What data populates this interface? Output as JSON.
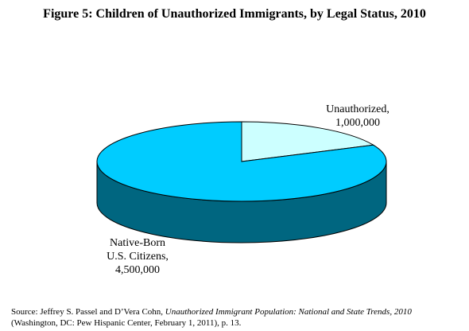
{
  "chart_data": {
    "type": "pie",
    "title": "Figure 5: Children of Unauthorized Immigrants, by Legal Status, 2010",
    "slices": [
      {
        "label_lines": [
          "Unauthorized,",
          "1,000,000"
        ],
        "value": 1000000,
        "color": "#ccffff",
        "side_color": "#00cccc"
      },
      {
        "label_lines": [
          "Native-Born",
          "U.S. Citizens,",
          "4,500,000"
        ],
        "value": 4500000,
        "color": "#00ccff",
        "side_color": "#006680"
      }
    ],
    "style": "3d"
  },
  "source": {
    "prefix": "Source: Jeffrey S. Passel and D’Vera Cohn, ",
    "title_italic": "Unauthorized Immigrant Population: National and State Trends, 2010",
    "suffix": " (Washington, DC: Pew Hispanic Center, February 1, 2011), p. 13."
  }
}
